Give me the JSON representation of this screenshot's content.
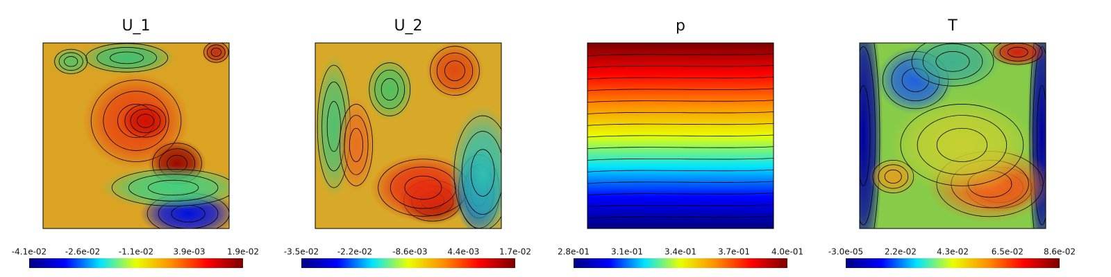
{
  "chart_data": [
    {
      "type": "contour",
      "title": "U_1",
      "colormap": [
        "#000080",
        "#0000ff",
        "#00e5ff",
        "#e8ff00",
        "#ff8c00",
        "#ff0000",
        "#7a0000"
      ],
      "clim": [
        -0.041,
        0.019
      ],
      "cticks": [
        {
          "value": -0.041,
          "label": "-4.1e-02"
        },
        {
          "value": -0.026,
          "label": "-2.6e-02"
        },
        {
          "value": -0.011,
          "label": "-1.1e-02"
        },
        {
          "value": 0.0039,
          "label": "3.9e-03"
        },
        {
          "value": 0.019,
          "label": "1.9e-02"
        }
      ]
    },
    {
      "type": "contour",
      "title": "U_2",
      "colormap": [
        "#000080",
        "#0000ff",
        "#00e5ff",
        "#e8ff00",
        "#ff8c00",
        "#ff0000",
        "#7a0000"
      ],
      "clim": [
        -0.035,
        0.017
      ],
      "cticks": [
        {
          "value": -0.035,
          "label": "-3.5e-02"
        },
        {
          "value": -0.022,
          "label": "-2.2e-02"
        },
        {
          "value": -0.0086,
          "label": "-8.6e-03"
        },
        {
          "value": 0.0044,
          "label": "4.4e-03"
        },
        {
          "value": 0.017,
          "label": "1.7e-02"
        }
      ]
    },
    {
      "type": "contour",
      "title": "p",
      "colormap": [
        "#000080",
        "#0000ff",
        "#00e5ff",
        "#e8ff00",
        "#ff8c00",
        "#ff0000",
        "#7a0000"
      ],
      "clim": [
        0.28,
        0.4
      ],
      "cticks": [
        {
          "value": 0.28,
          "label": "2.8e-01"
        },
        {
          "value": 0.31,
          "label": "3.1e-01"
        },
        {
          "value": 0.34,
          "label": "3.4e-01"
        },
        {
          "value": 0.37,
          "label": "3.7e-01"
        },
        {
          "value": 0.4,
          "label": "4.0e-01"
        }
      ]
    },
    {
      "type": "contour",
      "title": "T",
      "colormap": [
        "#000080",
        "#0000ff",
        "#00e5ff",
        "#e8ff00",
        "#ff8c00",
        "#ff0000",
        "#7a0000"
      ],
      "clim": [
        -3e-05,
        0.086
      ],
      "cticks": [
        {
          "value": -3e-05,
          "label": "-3.0e-05"
        },
        {
          "value": 0.022,
          "label": "2.2e-02"
        },
        {
          "value": 0.043,
          "label": "4.3e-02"
        },
        {
          "value": 0.065,
          "label": "6.5e-02"
        },
        {
          "value": 0.086,
          "label": "8.6e-02"
        }
      ]
    }
  ]
}
